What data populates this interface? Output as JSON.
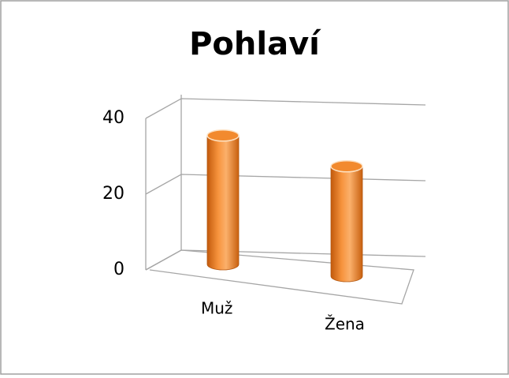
{
  "chart_data": {
    "type": "cylinder",
    "title": "Pohlaví",
    "categories": [
      "Muž",
      "Žena"
    ],
    "values": [
      34,
      29
    ],
    "color": "#f28a2e",
    "ylim": [
      0,
      40
    ],
    "yticks": [
      0,
      20,
      40
    ],
    "grid": true
  }
}
